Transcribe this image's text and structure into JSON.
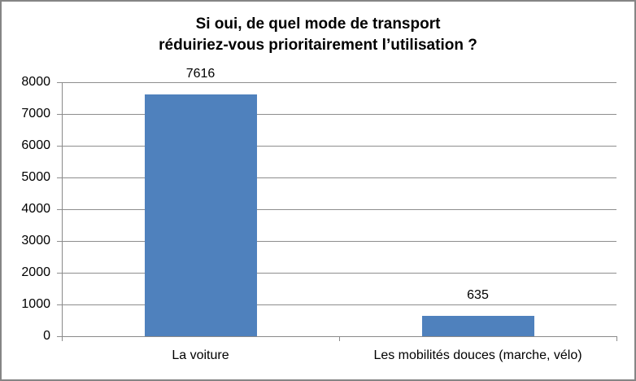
{
  "chart": {
    "border_color": "#858585",
    "background_color": "#ffffff",
    "text_color": "#000000"
  },
  "chart_data": {
    "type": "bar",
    "title": "Si oui, de quel mode de transport réduiriez-vous prioritairement l’utilisation ?",
    "title_lines": [
      "Si oui, de quel mode de transport",
      "réduiriez-vous prioritairement l’utilisation ?"
    ],
    "categories": [
      "La voiture",
      "Les mobilités douces (marche, vélo)"
    ],
    "values": [
      7616,
      635
    ],
    "data_labels": [
      "7616",
      "635"
    ],
    "xlabel": "",
    "ylabel": "",
    "ylim": [
      0,
      8000
    ],
    "ytick_interval": 1000,
    "yticks": [
      0,
      1000,
      2000,
      3000,
      4000,
      5000,
      6000,
      7000,
      8000
    ],
    "grid": true,
    "legend_position": "none",
    "bar_color": "#4F81BD",
    "gridline_color": "#8e8e8e",
    "axis_color": "#8a8a8a"
  }
}
